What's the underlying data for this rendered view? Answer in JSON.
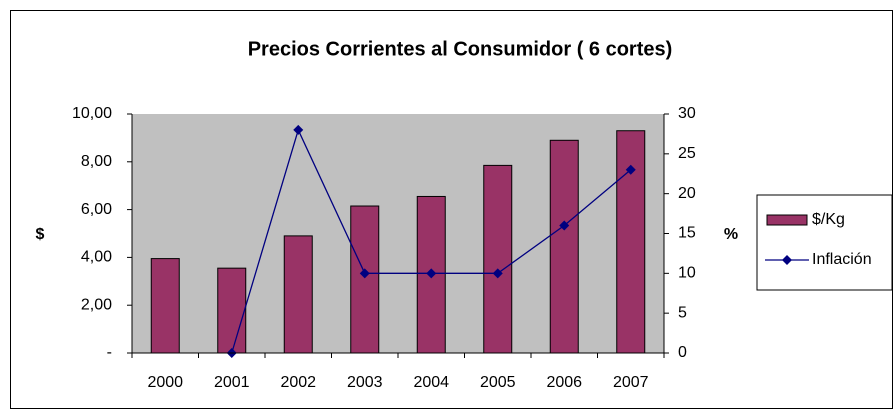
{
  "chart_data": {
    "type": "bar-line",
    "title": "Precios Corrientes al Consumidor ( 6 cortes)",
    "y_label": "$",
    "y2_label": "%",
    "categories": [
      "2000",
      "2001",
      "2002",
      "2003",
      "2004",
      "2005",
      "2006",
      "2007"
    ],
    "series": [
      {
        "name": "$/Kg",
        "type": "bar",
        "color": "#993366",
        "values": [
          3.95,
          3.55,
          4.9,
          6.15,
          6.55,
          7.85,
          8.9,
          9.3
        ]
      },
      {
        "name": "Inflación",
        "type": "line",
        "color": "#000080",
        "axis": "y2",
        "values": [
          null,
          0,
          28,
          10,
          10,
          10,
          16,
          23
        ]
      }
    ],
    "ylim": [
      0,
      10
    ],
    "yticks": [
      {
        "value": 0,
        "label": "-"
      },
      {
        "value": 2,
        "label": "2,00"
      },
      {
        "value": 4,
        "label": "4,00"
      },
      {
        "value": 6,
        "label": "6,00"
      },
      {
        "value": 8,
        "label": "8,00"
      },
      {
        "value": 10,
        "label": "10,00"
      }
    ],
    "y2lim": [
      0,
      30
    ],
    "y2ticks": [
      0,
      5,
      10,
      15,
      20,
      25,
      30
    ],
    "plot_background": "#c0c0c0",
    "legend": "right"
  }
}
